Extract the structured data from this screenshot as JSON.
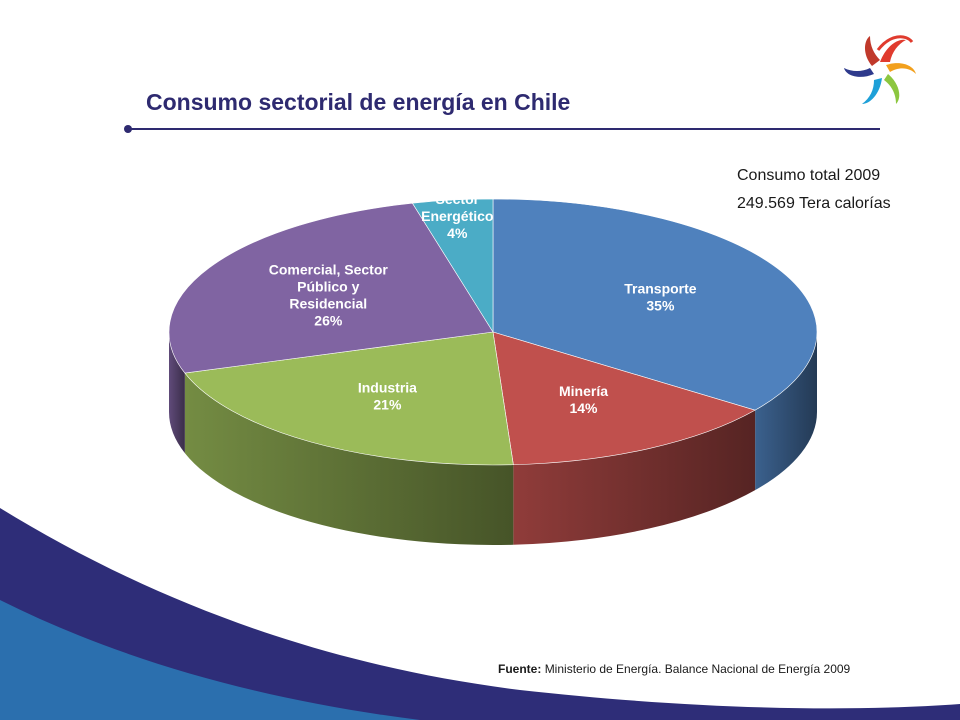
{
  "slide": {
    "title": "Consumo sectorial de energía en Chile",
    "total_line_1": "Consumo total 2009",
    "total_line_2": "249.569 Tera calorías",
    "source_label": "Fuente:",
    "source_text": "Ministerio de Energía. Balance Nacional de Energía 2009",
    "title_color": "#2e2a70",
    "logo_icon": "pinwheel-logo-icon"
  },
  "chart_data": {
    "type": "pie",
    "title": "",
    "style": "3d-exploded-none",
    "slices": [
      {
        "name": [
          "Transporte"
        ],
        "value": 35,
        "value_label": "35%",
        "color": "#4f81bd",
        "label_color": "#ffffff"
      },
      {
        "name": [
          "Minería"
        ],
        "value": 14,
        "value_label": "14%",
        "color": "#c0504d",
        "label_color": "#ffffff"
      },
      {
        "name": [
          "Industria"
        ],
        "value": 21,
        "value_label": "21%",
        "color": "#9bbb59",
        "label_color": "#ffffff"
      },
      {
        "name": [
          "Comercial, Sector",
          "Público y",
          "Residencial"
        ],
        "value": 26,
        "value_label": "26%",
        "color": "#8064a2",
        "label_color": "#ffffff"
      },
      {
        "name": [
          "Sector",
          "Energético"
        ],
        "value": 4,
        "value_label": "4%",
        "color": "#4bacc6",
        "label_color": "#ffffff"
      }
    ]
  }
}
